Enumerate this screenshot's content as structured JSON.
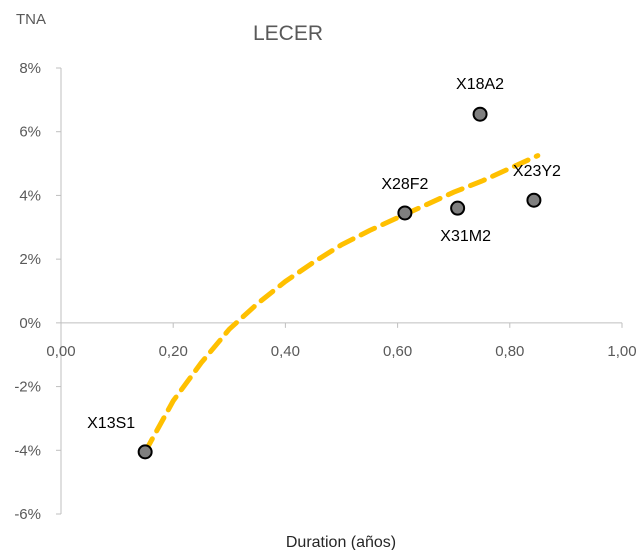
{
  "chart_data": {
    "type": "scatter",
    "title": "LECER",
    "xlabel": "Duration (años)",
    "ylabel": "TNA",
    "xlim": [
      0,
      1
    ],
    "ylim": [
      -0.06,
      0.08
    ],
    "x_ticks": [
      0,
      0.2,
      0.4,
      0.6,
      0.8,
      1.0
    ],
    "x_tick_labels": [
      "0,00",
      "0,20",
      "0,40",
      "0,60",
      "0,80",
      "1,00"
    ],
    "y_ticks": [
      0.08,
      0.06,
      0.04,
      0.02,
      0,
      -0.02,
      -0.04,
      -0.06
    ],
    "y_tick_labels": [
      "8%",
      "6%",
      "4%",
      "2%",
      "0%",
      "-2%",
      "-4%",
      "-6%"
    ],
    "grid": false,
    "legend": "none",
    "points": [
      {
        "label": "X13S1",
        "x": 0.15,
        "y": -0.0405
      },
      {
        "label": "X28F2",
        "x": 0.613,
        "y": 0.0345
      },
      {
        "label": "X31M2",
        "x": 0.707,
        "y": 0.036
      },
      {
        "label": "X18A2",
        "x": 0.747,
        "y": 0.0655
      },
      {
        "label": "X23Y2",
        "x": 0.843,
        "y": 0.0385
      }
    ],
    "trendline": {
      "type": "logarithmic",
      "style": "dashed",
      "x": [
        0.15,
        0.2,
        0.25,
        0.3,
        0.35,
        0.4,
        0.45,
        0.5,
        0.55,
        0.6,
        0.65,
        0.7,
        0.75,
        0.8,
        0.85
      ],
      "y": [
        -0.0405,
        -0.0245,
        -0.0125,
        -0.002,
        0.006,
        0.013,
        0.019,
        0.0245,
        0.029,
        0.033,
        0.037,
        0.041,
        0.0445,
        0.0485,
        0.0525
      ]
    },
    "colors": {
      "point_fill": "#7f7f7f",
      "point_stroke": "#000000",
      "trendline": "#ffc000",
      "axis": "#bfbfbf",
      "text": "#595959"
    }
  }
}
